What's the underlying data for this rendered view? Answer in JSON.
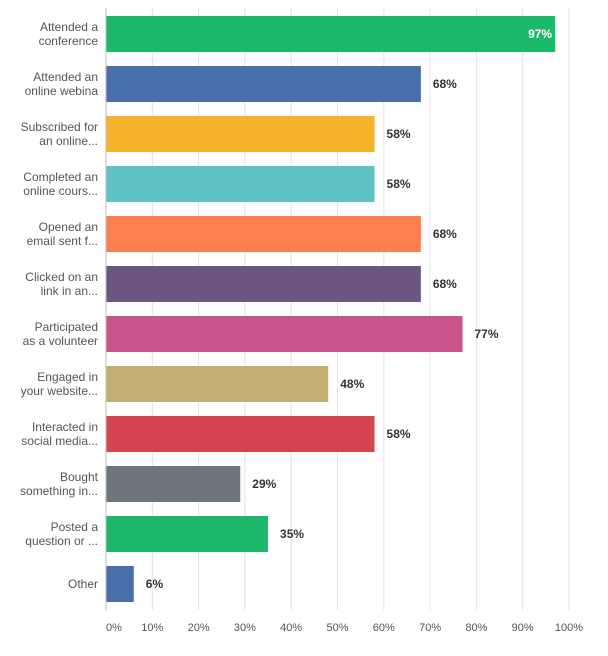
{
  "chart_data": {
    "type": "bar",
    "orientation": "horizontal",
    "categories": [
      [
        "Attended a",
        "conference"
      ],
      [
        "Attended an",
        "online webina"
      ],
      [
        "Subscribed for",
        "an online..."
      ],
      [
        "Completed an",
        "online cours..."
      ],
      [
        "Opened an",
        "email sent f..."
      ],
      [
        "Clicked on an",
        "link in an..."
      ],
      [
        "Participated",
        "as a volunteer"
      ],
      [
        "Engaged in",
        "your website..."
      ],
      [
        "Interacted in",
        "social media..."
      ],
      [
        "Bought",
        "something in..."
      ],
      [
        "Posted a",
        "question or ..."
      ],
      [
        "Other"
      ]
    ],
    "values": [
      97,
      68,
      58,
      58,
      68,
      68,
      77,
      48,
      58,
      29,
      35,
      6
    ],
    "value_labels": [
      "97%",
      "68%",
      "58%",
      "58%",
      "68%",
      "68%",
      "77%",
      "48%",
      "58%",
      "29%",
      "35%",
      "6%"
    ],
    "colors": [
      "#1cb96b",
      "#476fa9",
      "#f6b42c",
      "#61c2c5",
      "#fd7f4f",
      "#6c5582",
      "#c9538a",
      "#c4ae73",
      "#d5434f",
      "#6d767b",
      "#1cb96b",
      "#476fa9"
    ],
    "x_ticks": [
      0,
      10,
      20,
      30,
      40,
      50,
      60,
      70,
      80,
      90,
      100
    ],
    "x_tick_labels": [
      "0%",
      "10%",
      "20%",
      "30%",
      "40%",
      "50%",
      "60%",
      "70%",
      "80%",
      "90%",
      "100%"
    ],
    "xlim": [
      0,
      100
    ],
    "grid": true,
    "title": "",
    "xlabel": "",
    "ylabel": ""
  }
}
